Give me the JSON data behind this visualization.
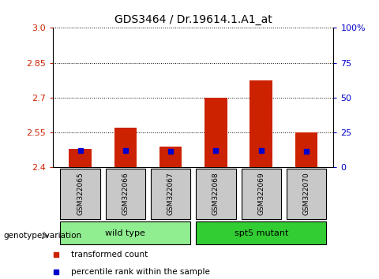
{
  "title": "GDS3464 / Dr.19614.1.A1_at",
  "samples": [
    "GSM322065",
    "GSM322066",
    "GSM322067",
    "GSM322068",
    "GSM322069",
    "GSM322070"
  ],
  "transformed_counts": [
    2.48,
    2.57,
    2.49,
    2.7,
    2.775,
    2.55
  ],
  "percentile_values": [
    2.473,
    2.473,
    2.47,
    2.473,
    2.473,
    2.47
  ],
  "ylim": [
    2.4,
    3.0
  ],
  "yticks": [
    2.4,
    2.55,
    2.7,
    2.85,
    3.0
  ],
  "right_yticks": [
    0,
    25,
    50,
    75,
    100
  ],
  "right_ylabels": [
    "0",
    "25",
    "50",
    "75",
    "100%"
  ],
  "groups": [
    {
      "name": "wild type",
      "indices": [
        0,
        1,
        2
      ],
      "color": "#90EE90"
    },
    {
      "name": "spt5 mutant",
      "indices": [
        3,
        4,
        5
      ],
      "color": "#32CD32"
    }
  ],
  "bar_color": "#CC2200",
  "percentile_color": "#0000CC",
  "bar_width": 0.5,
  "bg_label_color": "#C8C8C8",
  "legend_items": [
    {
      "label": "transformed count",
      "color": "#CC2200"
    },
    {
      "label": "percentile rank within the sample",
      "color": "#0000CC"
    }
  ]
}
